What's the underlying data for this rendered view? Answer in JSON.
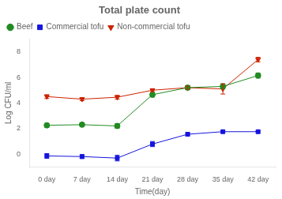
{
  "chart_data": {
    "type": "line",
    "title": "Total plate count",
    "xlabel": "Time(day)",
    "ylabel": "Log CFU/ml",
    "categories": [
      "0 day",
      "7 day",
      "14 day",
      "21 day",
      "28 day",
      "35 day",
      "42 day"
    ],
    "series": [
      {
        "name": "Beef",
        "color": "#228B22",
        "marker": "circle",
        "values": [
          2.25,
          2.3,
          2.2,
          4.65,
          5.2,
          5.3,
          6.15
        ],
        "errors": [
          0.15,
          0.15,
          0.18,
          0.18,
          0.15,
          0.2,
          0.2
        ]
      },
      {
        "name": "Commercial tofu",
        "color": "#1515dd",
        "marker": "square",
        "values": [
          -0.15,
          -0.2,
          -0.32,
          0.78,
          1.55,
          1.75,
          1.75
        ],
        "errors": [
          0.18,
          0.15,
          0.22,
          0.2,
          0.12,
          0.1,
          0.08
        ]
      },
      {
        "name": "Non-commercial tofu",
        "color": "#cc2200",
        "marker": "triangle_down",
        "values": [
          4.5,
          4.3,
          4.45,
          5.0,
          5.2,
          5.1,
          7.4
        ],
        "errors": [
          0.15,
          0.12,
          0.15,
          0.12,
          0.12,
          0.4,
          0.18
        ]
      }
    ],
    "ylim": [
      -1.0,
      9.0
    ],
    "yticks": [
      0,
      2,
      4,
      6,
      8
    ],
    "grid": false,
    "legend": "upper left"
  }
}
